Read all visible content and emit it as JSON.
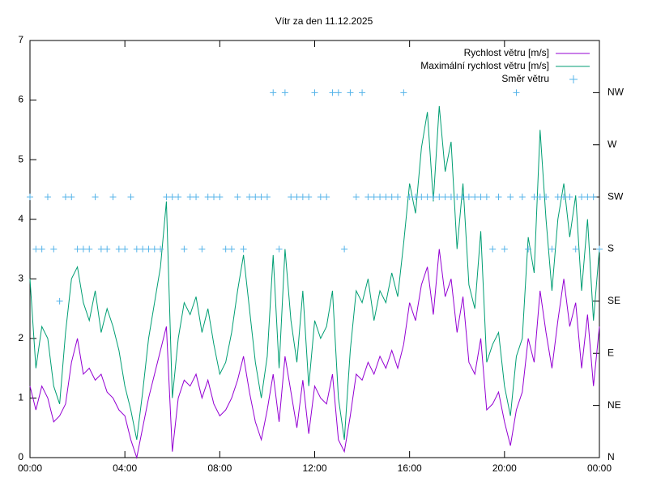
{
  "chart_data": {
    "type": "line",
    "title": "Vítr za den 11.12.2025",
    "x": [
      0,
      0.25,
      0.5,
      0.75,
      1,
      1.25,
      1.5,
      1.75,
      2,
      2.25,
      2.5,
      2.75,
      3,
      3.25,
      3.5,
      3.75,
      4,
      4.25,
      4.5,
      4.75,
      5,
      5.25,
      5.5,
      5.75,
      6,
      6.25,
      6.5,
      6.75,
      7,
      7.25,
      7.5,
      7.75,
      8,
      8.25,
      8.5,
      8.75,
      9,
      9.25,
      9.5,
      9.75,
      10,
      10.25,
      10.5,
      10.75,
      11,
      11.25,
      11.5,
      11.75,
      12,
      12.25,
      12.5,
      12.75,
      13,
      13.25,
      13.5,
      13.75,
      14,
      14.25,
      14.5,
      14.75,
      15,
      15.25,
      15.5,
      15.75,
      16,
      16.25,
      16.5,
      16.75,
      17,
      17.25,
      17.5,
      17.75,
      18,
      18.25,
      18.5,
      18.75,
      19,
      19.25,
      19.5,
      19.75,
      20,
      20.25,
      20.5,
      20.75,
      21,
      21.25,
      21.5,
      21.75,
      22,
      22.25,
      22.5,
      22.75,
      23,
      23.25,
      23.5,
      23.75,
      24
    ],
    "series": [
      {
        "name": "Rychlost větru [m/s]",
        "color": "#9400d3",
        "values": [
          1.2,
          0.8,
          1.2,
          1.0,
          0.6,
          0.7,
          0.9,
          1.6,
          2.0,
          1.4,
          1.5,
          1.3,
          1.4,
          1.1,
          1.0,
          0.8,
          0.7,
          0.3,
          0.0,
          0.5,
          1.0,
          1.4,
          1.8,
          2.2,
          0.1,
          1.0,
          1.3,
          1.2,
          1.4,
          1.0,
          1.3,
          0.9,
          0.7,
          0.8,
          1.0,
          1.3,
          1.7,
          1.1,
          0.6,
          0.3,
          0.8,
          1.4,
          0.6,
          1.7,
          1.1,
          0.5,
          1.3,
          0.4,
          1.2,
          1.0,
          0.9,
          1.4,
          0.3,
          0.1,
          0.7,
          1.4,
          1.3,
          1.6,
          1.4,
          1.7,
          1.5,
          1.8,
          1.5,
          1.9,
          2.6,
          2.3,
          2.9,
          3.2,
          2.4,
          3.5,
          2.7,
          3.0,
          2.1,
          2.7,
          1.6,
          1.4,
          2.0,
          0.8,
          0.9,
          1.1,
          0.6,
          0.2,
          0.8,
          1.1,
          2.0,
          1.6,
          2.8,
          2.1,
          1.5,
          2.3,
          3.0,
          2.2,
          2.6,
          1.5,
          2.4,
          1.2,
          2.2
        ]
      },
      {
        "name": "Maximální rychlost větru [m/s]",
        "color": "#009e73",
        "values": [
          3.0,
          1.5,
          2.2,
          2.0,
          1.2,
          0.9,
          2.1,
          3.0,
          3.2,
          2.6,
          2.3,
          2.8,
          2.1,
          2.5,
          2.2,
          1.8,
          1.2,
          0.8,
          0.3,
          1.1,
          2.0,
          2.6,
          3.2,
          4.3,
          1.0,
          2.0,
          2.6,
          2.4,
          2.7,
          2.1,
          2.5,
          1.9,
          1.4,
          1.6,
          2.1,
          2.8,
          3.4,
          2.5,
          1.6,
          1.0,
          1.7,
          3.4,
          1.5,
          3.5,
          2.3,
          1.6,
          2.8,
          1.2,
          2.3,
          2.0,
          2.2,
          2.8,
          1.0,
          0.3,
          1.8,
          2.8,
          2.6,
          3.0,
          2.3,
          2.8,
          2.6,
          3.1,
          2.7,
          3.6,
          4.6,
          4.1,
          5.2,
          5.8,
          4.3,
          5.9,
          4.8,
          5.3,
          3.5,
          4.6,
          2.9,
          2.5,
          3.8,
          1.6,
          1.9,
          2.1,
          1.2,
          0.7,
          1.7,
          2.0,
          3.7,
          3.1,
          5.5,
          4.0,
          2.8,
          4.0,
          4.6,
          3.7,
          4.4,
          2.8,
          4.0,
          2.3,
          3.5
        ]
      },
      {
        "name": "Směr větru",
        "color": "#56b4e9",
        "axis": "y2",
        "marker": "+",
        "values": [
          225,
          180,
          180,
          225,
          180,
          135,
          225,
          225,
          180,
          180,
          180,
          225,
          180,
          180,
          225,
          180,
          180,
          225,
          180,
          180,
          180,
          180,
          180,
          225,
          225,
          225,
          180,
          225,
          225,
          180,
          225,
          225,
          225,
          180,
          180,
          225,
          180,
          225,
          225,
          225,
          225,
          315,
          180,
          315,
          225,
          225,
          225,
          225,
          315,
          225,
          225,
          315,
          315,
          180,
          315,
          225,
          315,
          225,
          225,
          225,
          225,
          225,
          225,
          315,
          225,
          225,
          225,
          225,
          225,
          225,
          225,
          225,
          225,
          225,
          225,
          225,
          225,
          225,
          180,
          225,
          180,
          225,
          315,
          225,
          180,
          225,
          225,
          225,
          180,
          225,
          225,
          225,
          180,
          225,
          225,
          225,
          180
        ]
      }
    ],
    "xlim": [
      0,
      24
    ],
    "xticks": [
      {
        "value": 0,
        "label": "00:00"
      },
      {
        "value": 4,
        "label": "04:00"
      },
      {
        "value": 8,
        "label": "08:00"
      },
      {
        "value": 12,
        "label": "12:00"
      },
      {
        "value": 16,
        "label": "16:00"
      },
      {
        "value": 20,
        "label": "20:00"
      },
      {
        "value": 24,
        "label": "00:00"
      }
    ],
    "ylim": [
      0,
      7
    ],
    "yticks": [
      0,
      1,
      2,
      3,
      4,
      5,
      6,
      7
    ],
    "y2lim": [
      0,
      360
    ],
    "y2ticks": [
      {
        "value": 0,
        "label": "N"
      },
      {
        "value": 45,
        "label": "NE"
      },
      {
        "value": 90,
        "label": "E"
      },
      {
        "value": 135,
        "label": "SE"
      },
      {
        "value": 180,
        "label": "S"
      },
      {
        "value": 225,
        "label": "SW"
      },
      {
        "value": 270,
        "label": "W"
      },
      {
        "value": 315,
        "label": "NW"
      }
    ],
    "legend": "top-right"
  }
}
